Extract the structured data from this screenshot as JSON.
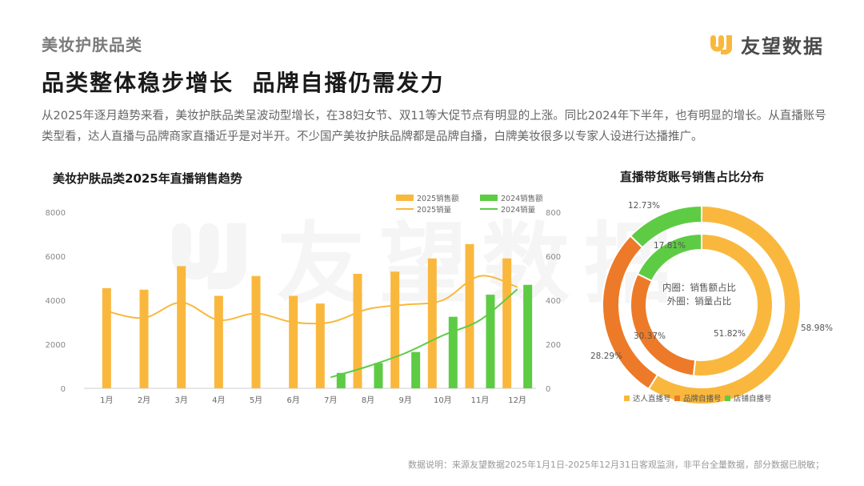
{
  "header": {
    "category": "美妆护肤品类",
    "brand_name": "友望数据",
    "headline": "品类整体稳步增长  品牌自播仍需发力",
    "description": "从2025年逐月趋势来看，美妆护肤品类呈波动型增长，在38妇女节、双11等大促节点有明显的上涨。同比2024年下半年，也有明显的增长。从直播账号类型看，达人直播与品牌商家直播近乎是对半开。不少国产美妆护肤品牌都是品牌自播，白牌美妆很多以专家人设进行达播推广。"
  },
  "watermark": {
    "text": "友望数据"
  },
  "footnote": "数据说明：来源友望数据2025年1月1日-2025年12月31日客观监测，非平台全量数据，部分数据已脱敏；",
  "colors": {
    "orange": "#F9B83D",
    "green": "#5ECB44",
    "dark_orange": "#EC7A28"
  },
  "chart_data": [
    {
      "type": "bar",
      "title": "美妆护肤品类2025年直播销售趋势",
      "categories": [
        "1月",
        "2月",
        "3月",
        "4月",
        "5月",
        "6月",
        "7月",
        "8月",
        "9月",
        "10月",
        "11月",
        "12月"
      ],
      "ylim_left": [
        0,
        8000
      ],
      "yticks_left": [
        0,
        2000,
        4000,
        6000,
        8000
      ],
      "ylim_right": [
        0,
        800
      ],
      "yticks_right": [
        0,
        200,
        400,
        600,
        800
      ],
      "grid": false,
      "legend_position": "top-right",
      "bar_series": [
        {
          "name": "2025销售额",
          "color": "#F9B83D",
          "axis": "left",
          "values": [
            4550,
            4480,
            5550,
            4200,
            5100,
            4200,
            3850,
            5200,
            5300,
            5900,
            6550,
            5900
          ]
        },
        {
          "name": "2024销售额",
          "color": "#5ECB44",
          "axis": "left",
          "values": [
            null,
            null,
            null,
            null,
            null,
            null,
            700,
            1150,
            1650,
            3250,
            4250,
            4700
          ]
        }
      ],
      "line_series": [
        {
          "name": "2025销量",
          "color": "#F9B83D",
          "axis": "right",
          "values": [
            350,
            320,
            390,
            310,
            340,
            300,
            300,
            360,
            380,
            400,
            510,
            460
          ]
        },
        {
          "name": "2024销量",
          "color": "#5ECB44",
          "axis": "right",
          "values": [
            null,
            null,
            null,
            null,
            null,
            null,
            50,
            100,
            160,
            240,
            310,
            450
          ]
        }
      ]
    },
    {
      "type": "pie",
      "subtype": "donut",
      "title": "直播带货账号销售占比分布",
      "center_labels": [
        "内圈：销售额占比",
        "外圈：销量占比"
      ],
      "categories": [
        "达人直播号",
        "品牌自播号",
        "店铺自播号"
      ],
      "colors": [
        "#F9B83D",
        "#EC7A28",
        "#5ECB44"
      ],
      "legend_position": "bottom",
      "series": [
        {
          "ring": "outer",
          "values": [
            58.98,
            28.29,
            12.73
          ],
          "labels": [
            "58.98%",
            "28.29%",
            "12.73%"
          ]
        },
        {
          "ring": "inner",
          "values": [
            51.82,
            30.37,
            17.81
          ],
          "labels": [
            "51.82%",
            "30.37%",
            "17.81%"
          ]
        }
      ]
    }
  ]
}
